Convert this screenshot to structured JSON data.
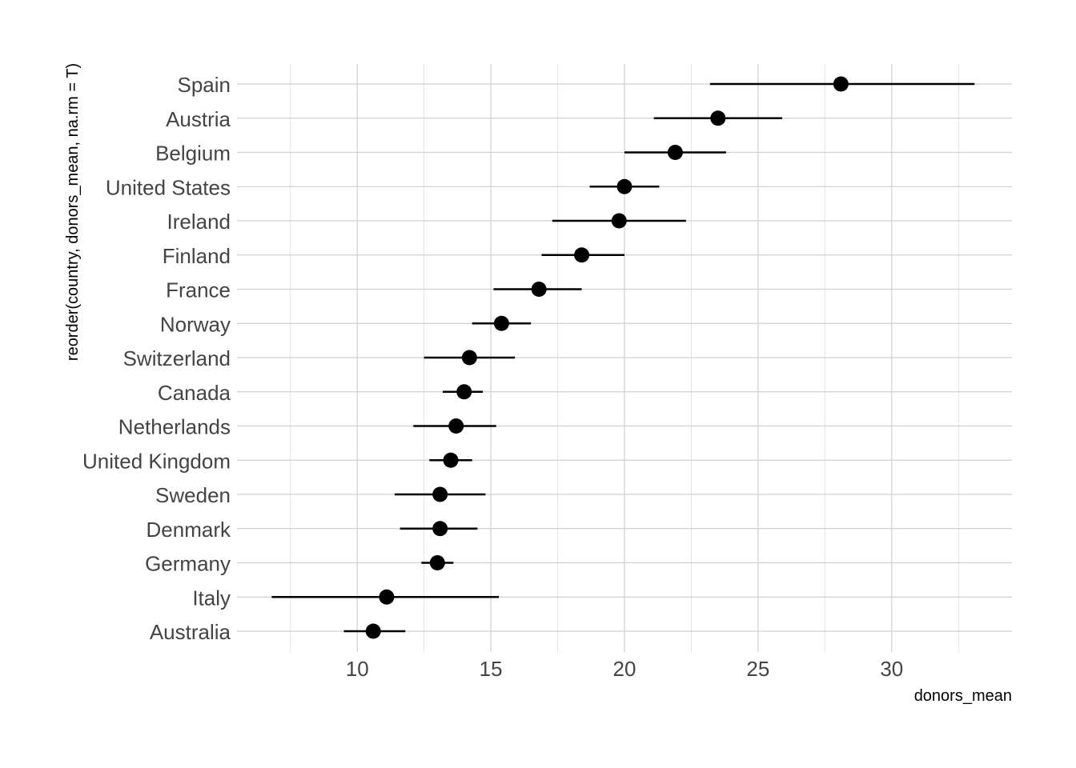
{
  "chart_data": {
    "type": "scatter",
    "title": "",
    "xlabel": "donors_mean",
    "ylabel": "reorder(country, donors_mean, na.rm = T)",
    "xlim": [
      5.5,
      34.5
    ],
    "xticks": [
      10,
      15,
      20,
      25,
      30
    ],
    "xtick_labels": [
      "10",
      "15",
      "20",
      "25",
      "30"
    ],
    "grid": true,
    "legend": "none",
    "categories": [
      "Spain",
      "Austria",
      "Belgium",
      "United States",
      "Ireland",
      "Finland",
      "France",
      "Norway",
      "Switzerland",
      "Canada",
      "Netherlands",
      "United Kingdom",
      "Sweden",
      "Denmark",
      "Germany",
      "Italy",
      "Australia"
    ],
    "points": [
      {
        "country": "Spain",
        "mean": 28.1,
        "low": 23.2,
        "high": 33.1
      },
      {
        "country": "Austria",
        "mean": 23.5,
        "low": 21.1,
        "high": 25.9
      },
      {
        "country": "Belgium",
        "mean": 21.9,
        "low": 20.0,
        "high": 23.8
      },
      {
        "country": "United States",
        "mean": 20.0,
        "low": 18.7,
        "high": 21.3
      },
      {
        "country": "Ireland",
        "mean": 19.8,
        "low": 17.3,
        "high": 22.3
      },
      {
        "country": "Finland",
        "mean": 18.4,
        "low": 16.9,
        "high": 20.0
      },
      {
        "country": "France",
        "mean": 16.8,
        "low": 15.1,
        "high": 18.4
      },
      {
        "country": "Norway",
        "mean": 15.4,
        "low": 14.3,
        "high": 16.5
      },
      {
        "country": "Switzerland",
        "mean": 14.2,
        "low": 12.5,
        "high": 15.9
      },
      {
        "country": "Canada",
        "mean": 14.0,
        "low": 13.2,
        "high": 14.7
      },
      {
        "country": "Netherlands",
        "mean": 13.7,
        "low": 12.1,
        "high": 15.2
      },
      {
        "country": "United Kingdom",
        "mean": 13.5,
        "low": 12.7,
        "high": 14.3
      },
      {
        "country": "Sweden",
        "mean": 13.1,
        "low": 11.4,
        "high": 14.8
      },
      {
        "country": "Denmark",
        "mean": 13.1,
        "low": 11.6,
        "high": 14.5
      },
      {
        "country": "Germany",
        "mean": 13.0,
        "low": 12.4,
        "high": 13.6
      },
      {
        "country": "Italy",
        "mean": 11.1,
        "low": 6.8,
        "high": 15.3
      },
      {
        "country": "Australia",
        "mean": 10.6,
        "low": 9.5,
        "high": 11.8
      }
    ],
    "colors": {
      "points": "#000000",
      "errorbars": "#000000",
      "grid": "#cfcfcf"
    }
  }
}
